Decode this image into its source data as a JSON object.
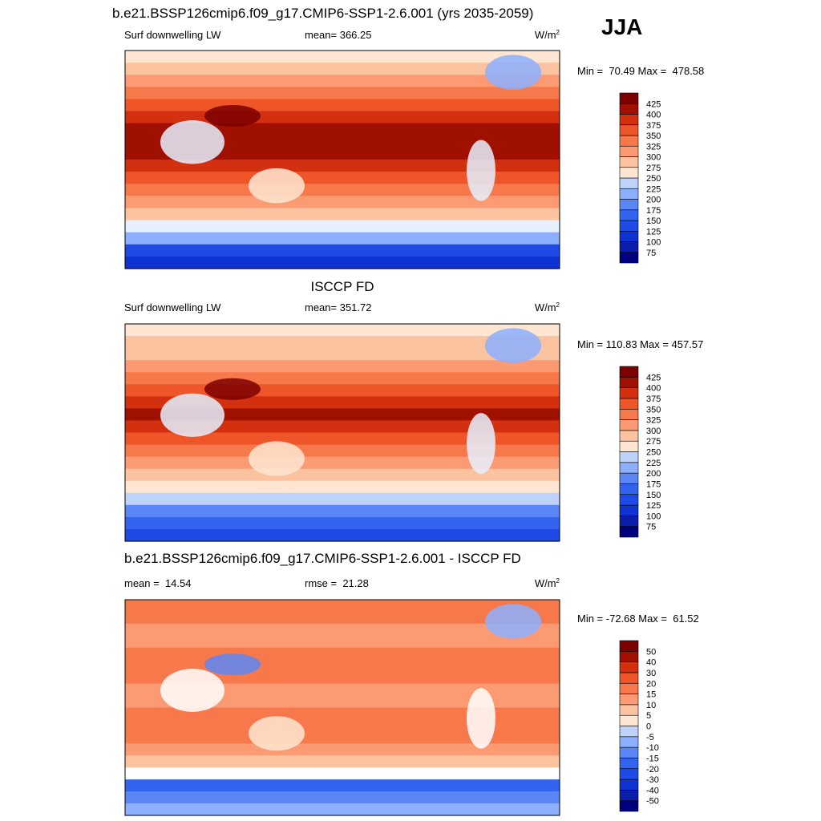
{
  "season": "JJA",
  "panels": [
    {
      "title": "b.e21.BSSP126cmip6.f09_g17.CMIP6-SSP1-2.6.001 (yrs 2035-2059)",
      "left": "Surf downwelling LW",
      "center": "mean= 366.25",
      "units": "W/m",
      "units_exp": "2",
      "range": "Min =  70.49 Max =  478.58",
      "levels": [
        75,
        100,
        125,
        150,
        175,
        200,
        225,
        250,
        275,
        300,
        325,
        350,
        375,
        400,
        425
      ],
      "colors": [
        "#00007f",
        "#0a1eaa",
        "#0f32d2",
        "#1e4be6",
        "#3264f0",
        "#5a87f5",
        "#8cafff",
        "#bed2fa",
        "#e6f0ff",
        "#ffe6d2",
        "#fcc3a0",
        "#fc9b73",
        "#f7784b",
        "#ee5528",
        "#d2300f",
        "#a01000",
        "#7d0000"
      ]
    },
    {
      "title": "ISCCP FD",
      "left": "Surf downwelling LW",
      "center": "mean= 351.72",
      "units": "W/m",
      "units_exp": "2",
      "range": "Min = 110.83 Max = 457.57",
      "levels": [
        75,
        100,
        125,
        150,
        175,
        200,
        225,
        250,
        275,
        300,
        325,
        350,
        375,
        400,
        425
      ],
      "colors": [
        "#00007f",
        "#0a1eaa",
        "#0f32d2",
        "#1e4be6",
        "#3264f0",
        "#5a87f5",
        "#8cafff",
        "#bed2fa",
        "#e6f0ff",
        "#ffe6d2",
        "#fcc3a0",
        "#fc9b73",
        "#f7784b",
        "#ee5528",
        "#d2300f",
        "#a01000",
        "#7d0000"
      ]
    },
    {
      "title": "b.e21.BSSP126cmip6.f09_g17.CMIP6-SSP1-2.6.001 - ISCCP FD",
      "left": "mean =  14.54",
      "center": "rmse =  21.28",
      "units": "W/m",
      "units_exp": "2",
      "range": "Min = -72.68 Max =  61.52",
      "levels": [
        -50,
        -40,
        -30,
        -20,
        -15,
        -10,
        -5,
        0,
        5,
        10,
        15,
        20,
        30,
        40,
        50
      ],
      "colors": [
        "#00007f",
        "#0a1eaa",
        "#0f32d2",
        "#1e4be6",
        "#3264f0",
        "#5a87f5",
        "#8cafff",
        "#bed2fa",
        "#ffffff",
        "#ffe6d2",
        "#fcc3a0",
        "#fc9b73",
        "#f7784b",
        "#ee5528",
        "#d2300f",
        "#a01000",
        "#7d0000"
      ]
    }
  ]
}
